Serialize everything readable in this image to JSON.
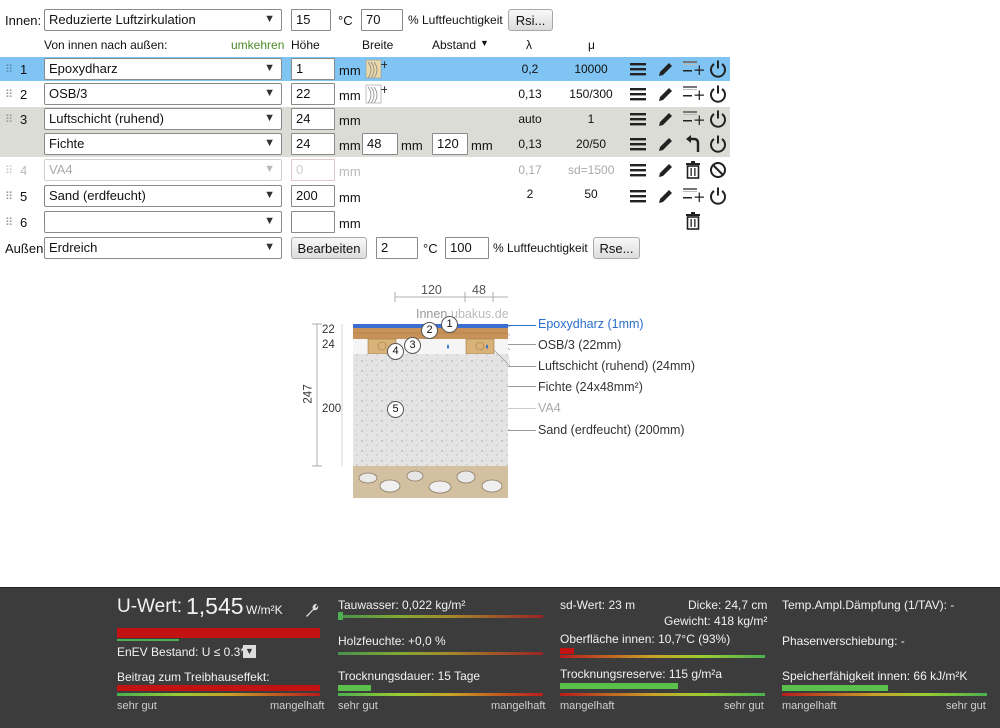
{
  "header": {
    "inside_label": "Innen:",
    "inside_climate": "Reduzierte Luftzirkulation",
    "inside_temp": "15",
    "temp_unit": "°C",
    "inside_humidity": "70",
    "humidity_unit": "% Luftfeuchtigkeit",
    "rsi_button": "Rsi...",
    "direction_label": "Von innen nach außen:",
    "reverse_link": "umkehren",
    "col_height": "Höhe",
    "col_width": "Breite",
    "col_spacing": "Abstand",
    "col_lambda": "λ",
    "col_mu": "μ"
  },
  "layers": [
    {
      "num": "1",
      "material": "Epoxydharz",
      "height": "1",
      "unit": "mm",
      "lambda": "0,2",
      "mu": "10000",
      "selected": true
    },
    {
      "num": "2",
      "material": "OSB/3",
      "height": "22",
      "unit": "mm",
      "lambda": "0,13",
      "mu": "150/300"
    },
    {
      "num": "3",
      "material": "Luftschicht (ruhend)",
      "height": "24",
      "unit": "mm",
      "lambda": "auto",
      "mu": "1"
    },
    {
      "num": "",
      "material": "Fichte",
      "height": "24",
      "unit": "mm",
      "width": "48",
      "width_unit": "mm",
      "spacing": "120",
      "spacing_unit": "mm",
      "lambda": "0,13",
      "mu": "20/50"
    },
    {
      "num": "4",
      "material": "VA4",
      "height": "0",
      "unit": "mm",
      "lambda": "0,17",
      "mu": "sd=1500",
      "disabled": true
    },
    {
      "num": "5",
      "material": "Sand (erdfeucht)",
      "height": "200",
      "unit": "mm",
      "lambda": "2",
      "mu": "50"
    },
    {
      "num": "6",
      "material": "",
      "height": "",
      "unit": "mm",
      "lambda": "",
      "mu": ""
    }
  ],
  "footer_row": {
    "outside_label": "Außen:",
    "outside_climate": "Erdreich",
    "edit_button": "Bearbeiten",
    "outside_temp": "2",
    "temp_unit": "°C",
    "outside_humidity": "100",
    "humidity_unit": "% Luftfeuchtigkeit",
    "rse_button": "Rse..."
  },
  "diagram": {
    "dim_spacing": "120",
    "dim_width": "48",
    "inside_label": "Innen",
    "watermark": "ubakus.de",
    "dim_22": "22",
    "dim_24": "24",
    "dim_total": "247",
    "dim_200": "200",
    "labels": [
      "Epoxydharz (1mm)",
      "OSB/3 (22mm)",
      "Luftschicht (ruhend) (24mm)",
      "Fichte (24x48mm²)",
      "VA4",
      "Sand (erdfeucht) (200mm)"
    ],
    "markers": [
      "1",
      "2",
      "3",
      "4",
      "5"
    ],
    "highlight_color": "#2a6fc9"
  },
  "results": {
    "uwert_label": "U-Wert:",
    "uwert_value": "1,545",
    "uwert_unit": "W/m²K",
    "enev_label": "EnEV Bestand: U ≤ 0.3*",
    "greenhouse_label": "Beitrag zum Treibhauseffekt:",
    "scale_good": "sehr gut",
    "scale_bad": "mangelhaft",
    "tauwasser": "Tauwasser: 0,022 kg/m²",
    "holzfeuchte": "Holzfeuchte: +0,0 %",
    "trocknungsdauer": "Trocknungsdauer: 15 Tage",
    "sd_wert": "sd-Wert: 23 m",
    "dicke": "Dicke: 24,7 cm",
    "gewicht": "Gewicht: 418 kg/m²",
    "oberflaeche": "Oberfläche innen: 10,7°C (93%)",
    "trocknungsreserve": "Trocknungsreserve: 115 g/m²a",
    "temp_ampl": "Temp.Ampl.Dämpfung (1/TAV): -",
    "phasen": "Phasenverschiebung: -",
    "speicher": "Speicherfähigkeit innen: 66 kJ/m²K",
    "col3_scale_left": "mangelhaft",
    "col3_scale_right": "sehr gut",
    "col4_scale_left": "mangelhaft",
    "col4_scale_right": "sehr gut"
  }
}
